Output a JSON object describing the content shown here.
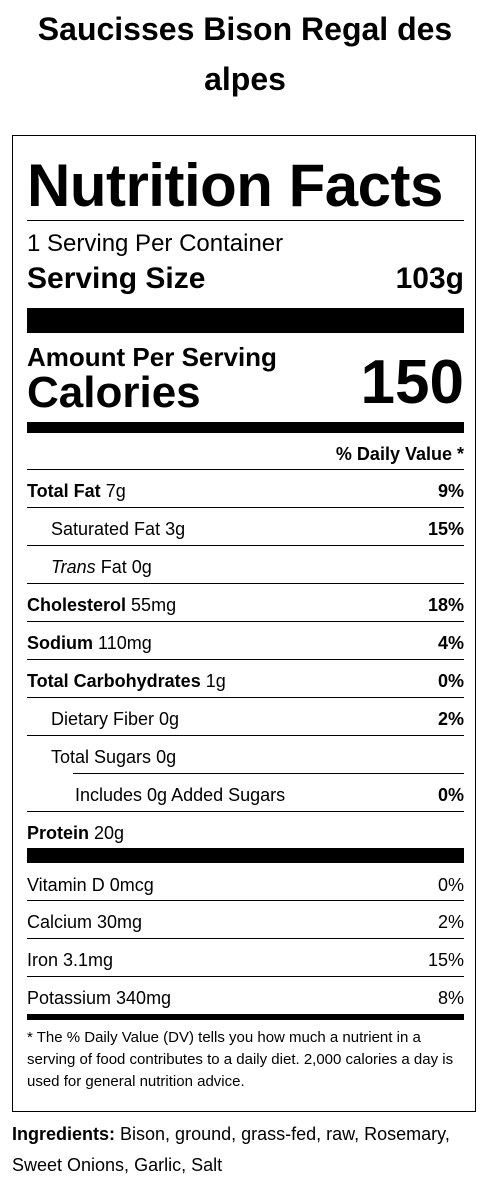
{
  "product": {
    "title": "Saucisses Bison Regal des alpes"
  },
  "panel": {
    "title": "Nutrition Facts",
    "servings_per_container": "1 Serving Per Container",
    "serving_size_label": "Serving Size",
    "serving_size_value": "103g",
    "amount_per_serving": "Amount Per Serving",
    "calories_label": "Calories",
    "calories_value": "150",
    "daily_value_header": "% Daily Value *",
    "nutrients": [
      {
        "label": "Total Fat",
        "amount": "7g",
        "dv": "9%"
      },
      {
        "label": "Saturated Fat",
        "amount": "3g",
        "dv": "15%"
      },
      {
        "label_italic": "Trans",
        "label": "Fat",
        "amount": "0g",
        "dv": ""
      },
      {
        "label": "Cholesterol",
        "amount": "55mg",
        "dv": "18%"
      },
      {
        "label": "Sodium",
        "amount": "110mg",
        "dv": "4%"
      },
      {
        "label": "Total Carbohydrates",
        "amount": "1g",
        "dv": "0%"
      },
      {
        "label": "Dietary Fiber",
        "amount": "0g",
        "dv": "2%"
      },
      {
        "label": "Total Sugars",
        "amount": "0g",
        "dv": ""
      },
      {
        "label": "Includes 0g Added Sugars",
        "amount": "",
        "dv": "0%"
      },
      {
        "label": "Protein",
        "amount": "20g",
        "dv": ""
      }
    ],
    "vitamins": [
      {
        "label": "Vitamin D 0mcg",
        "dv": "0%"
      },
      {
        "label": "Calcium 30mg",
        "dv": "2%"
      },
      {
        "label": "Iron 3.1mg",
        "dv": "15%"
      },
      {
        "label": "Potassium 340mg",
        "dv": "8%"
      }
    ],
    "footnote": "* The % Daily Value (DV) tells you how much a nutrient in a serving of food contributes to a daily diet. 2,000 calories a day is used for general nutrition advice."
  },
  "ingredients": {
    "label": "Ingredients:",
    "text": "Bison, ground, grass-fed, raw, Rosemary, Sweet Onions, Garlic, Salt"
  }
}
